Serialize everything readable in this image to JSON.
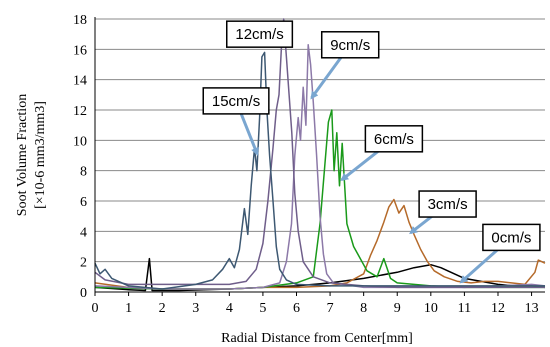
{
  "chart_data": {
    "type": "line",
    "title": "",
    "xlabel": "Radial Distance from Center[mm]",
    "ylabel_line1": "Soot Volume Fraction",
    "ylabel_line2": "[×10-6 mm3/mm3]",
    "xlim": [
      0,
      13.4
    ],
    "ylim": [
      0,
      18
    ],
    "x_ticks": [
      "0",
      "1",
      "2",
      "3",
      "4",
      "5",
      "6",
      "7",
      "8",
      "9",
      "10",
      "11",
      "12",
      "13"
    ],
    "y_ticks": [
      "0",
      "2",
      "4",
      "6",
      "8",
      "10",
      "12",
      "14",
      "16",
      "18"
    ],
    "grid": "horizontal",
    "series": [
      {
        "name": "0cm/s",
        "color": "#000000",
        "points": [
          [
            0,
            0.3
          ],
          [
            1,
            0.15
          ],
          [
            1.5,
            0.1
          ],
          [
            1.62,
            2.2
          ],
          [
            1.7,
            0.1
          ],
          [
            2.5,
            0.1
          ],
          [
            4,
            0.2
          ],
          [
            5,
            0.3
          ],
          [
            6,
            0.4
          ],
          [
            7,
            0.6
          ],
          [
            8,
            0.9
          ],
          [
            8.5,
            1.1
          ],
          [
            9,
            1.3
          ],
          [
            9.5,
            1.6
          ],
          [
            10,
            1.8
          ],
          [
            10.3,
            1.6
          ],
          [
            10.6,
            1.3
          ],
          [
            11,
            0.9
          ],
          [
            11.5,
            0.7
          ],
          [
            12,
            0.5
          ],
          [
            12.5,
            0.4
          ],
          [
            13,
            0.4
          ],
          [
            13.4,
            0.3
          ]
        ]
      },
      {
        "name": "3cm/s",
        "color": "#b56a2a",
        "points": [
          [
            0,
            0.6
          ],
          [
            1,
            0.3
          ],
          [
            2,
            0.2
          ],
          [
            3,
            0.2
          ],
          [
            4,
            0.2
          ],
          [
            5,
            0.3
          ],
          [
            6,
            0.3
          ],
          [
            7,
            0.4
          ],
          [
            7.5,
            0.6
          ],
          [
            8,
            1.2
          ],
          [
            8.2,
            2.4
          ],
          [
            8.4,
            3.4
          ],
          [
            8.6,
            4.6
          ],
          [
            8.75,
            5.6
          ],
          [
            8.9,
            6.1
          ],
          [
            9.05,
            5.2
          ],
          [
            9.2,
            5.7
          ],
          [
            9.35,
            4.6
          ],
          [
            9.5,
            3.8
          ],
          [
            9.7,
            2.8
          ],
          [
            9.9,
            2.0
          ],
          [
            10.1,
            1.4
          ],
          [
            10.4,
            1.0
          ],
          [
            10.8,
            0.7
          ],
          [
            11.2,
            0.6
          ],
          [
            11.6,
            0.7
          ],
          [
            12,
            0.7
          ],
          [
            12.4,
            0.6
          ],
          [
            12.8,
            0.5
          ],
          [
            13.1,
            1.3
          ],
          [
            13.2,
            2.1
          ],
          [
            13.4,
            1.9
          ]
        ]
      },
      {
        "name": "6cm/s",
        "color": "#1a9a1a",
        "points": [
          [
            0,
            0.3
          ],
          [
            2,
            0.2
          ],
          [
            4,
            0.2
          ],
          [
            5,
            0.3
          ],
          [
            6,
            0.6
          ],
          [
            6.5,
            1.0
          ],
          [
            6.7,
            4.5
          ],
          [
            6.85,
            8.5
          ],
          [
            6.95,
            11.2
          ],
          [
            7.05,
            12.0
          ],
          [
            7.12,
            8.0
          ],
          [
            7.2,
            10.5
          ],
          [
            7.28,
            7.0
          ],
          [
            7.36,
            9.8
          ],
          [
            7.5,
            4.5
          ],
          [
            7.7,
            3.0
          ],
          [
            7.9,
            2.2
          ],
          [
            8.1,
            1.4
          ],
          [
            8.4,
            1.0
          ],
          [
            8.6,
            2.2
          ],
          [
            8.8,
            0.9
          ],
          [
            9,
            0.6
          ],
          [
            10,
            0.4
          ],
          [
            11,
            0.3
          ],
          [
            12,
            0.3
          ],
          [
            13,
            0.3
          ],
          [
            13.4,
            0.3
          ]
        ]
      },
      {
        "name": "9cm/s",
        "color": "#8c79a8",
        "points": [
          [
            0,
            0.4
          ],
          [
            2,
            0.2
          ],
          [
            4,
            0.2
          ],
          [
            5,
            0.3
          ],
          [
            5.5,
            0.6
          ],
          [
            5.7,
            2.0
          ],
          [
            5.85,
            4.5
          ],
          [
            5.95,
            9.0
          ],
          [
            6.05,
            11.5
          ],
          [
            6.12,
            10.0
          ],
          [
            6.2,
            13.5
          ],
          [
            6.28,
            11.0
          ],
          [
            6.35,
            16.3
          ],
          [
            6.42,
            15.0
          ],
          [
            6.5,
            12.5
          ],
          [
            6.6,
            9.0
          ],
          [
            6.7,
            5.0
          ],
          [
            6.8,
            2.5
          ],
          [
            6.9,
            1.2
          ],
          [
            7.1,
            0.6
          ],
          [
            8,
            0.3
          ],
          [
            9,
            0.3
          ],
          [
            10,
            0.3
          ],
          [
            11,
            0.3
          ],
          [
            12,
            0.4
          ],
          [
            13,
            0.5
          ],
          [
            13.4,
            0.4
          ]
        ]
      },
      {
        "name": "12cm/s",
        "color": "#6f5e8a",
        "points": [
          [
            0,
            1.3
          ],
          [
            0.3,
            0.8
          ],
          [
            1,
            0.5
          ],
          [
            2,
            0.5
          ],
          [
            3,
            0.5
          ],
          [
            4,
            0.5
          ],
          [
            4.5,
            0.7
          ],
          [
            4.8,
            1.5
          ],
          [
            5.0,
            3.2
          ],
          [
            5.15,
            6.0
          ],
          [
            5.3,
            9.5
          ],
          [
            5.4,
            12.0
          ],
          [
            5.48,
            13.0
          ],
          [
            5.56,
            16.5
          ],
          [
            5.62,
            18.0
          ],
          [
            5.7,
            15.5
          ],
          [
            5.78,
            13.0
          ],
          [
            5.86,
            10.5
          ],
          [
            5.95,
            6.5
          ],
          [
            6.05,
            4.0
          ],
          [
            6.2,
            2.0
          ],
          [
            6.5,
            1.0
          ],
          [
            7,
            0.6
          ],
          [
            8,
            0.4
          ],
          [
            9,
            0.3
          ],
          [
            10,
            0.3
          ],
          [
            11,
            0.3
          ],
          [
            12,
            0.3
          ],
          [
            13,
            0.3
          ],
          [
            13.4,
            0.3
          ]
        ]
      },
      {
        "name": "15cm/s",
        "color": "#3d5872",
        "points": [
          [
            0,
            1.9
          ],
          [
            0.15,
            1.2
          ],
          [
            0.3,
            1.5
          ],
          [
            0.5,
            0.9
          ],
          [
            1,
            0.4
          ],
          [
            2,
            0.2
          ],
          [
            3,
            0.5
          ],
          [
            3.5,
            0.8
          ],
          [
            3.8,
            1.5
          ],
          [
            4.0,
            2.2
          ],
          [
            4.15,
            1.6
          ],
          [
            4.3,
            2.8
          ],
          [
            4.45,
            5.5
          ],
          [
            4.55,
            3.8
          ],
          [
            4.65,
            7.0
          ],
          [
            4.75,
            9.5
          ],
          [
            4.82,
            8.0
          ],
          [
            4.9,
            11.5
          ],
          [
            4.97,
            15.5
          ],
          [
            5.05,
            15.8
          ],
          [
            5.12,
            12.0
          ],
          [
            5.2,
            9.0
          ],
          [
            5.3,
            6.0
          ],
          [
            5.4,
            3.0
          ],
          [
            5.5,
            1.5
          ],
          [
            5.7,
            0.8
          ],
          [
            6,
            0.5
          ],
          [
            7,
            0.4
          ],
          [
            8,
            0.4
          ],
          [
            9,
            0.4
          ],
          [
            10,
            0.4
          ],
          [
            11,
            0.4
          ],
          [
            12,
            0.4
          ],
          [
            13,
            0.4
          ],
          [
            13.4,
            0.4
          ]
        ]
      }
    ],
    "callouts": [
      {
        "label": "12cm/s",
        "box": [
          4.9,
          17.0
        ],
        "tip": [
          5.55,
          16.4
        ]
      },
      {
        "label": "9cm/s",
        "box": [
          7.6,
          16.3
        ],
        "tip": [
          6.45,
          12.8
        ]
      },
      {
        "label": "15cm/s",
        "box": [
          4.2,
          12.6
        ],
        "tip": [
          4.83,
          9.1
        ]
      },
      {
        "label": "6cm/s",
        "box": [
          8.9,
          10.1
        ],
        "tip": [
          7.35,
          7.4
        ]
      },
      {
        "label": "3cm/s",
        "box": [
          10.5,
          5.8
        ],
        "tip": [
          9.4,
          3.9
        ]
      },
      {
        "label": "0cm/s",
        "box": [
          12.4,
          3.6
        ],
        "tip": [
          10.9,
          0.65
        ]
      }
    ]
  }
}
